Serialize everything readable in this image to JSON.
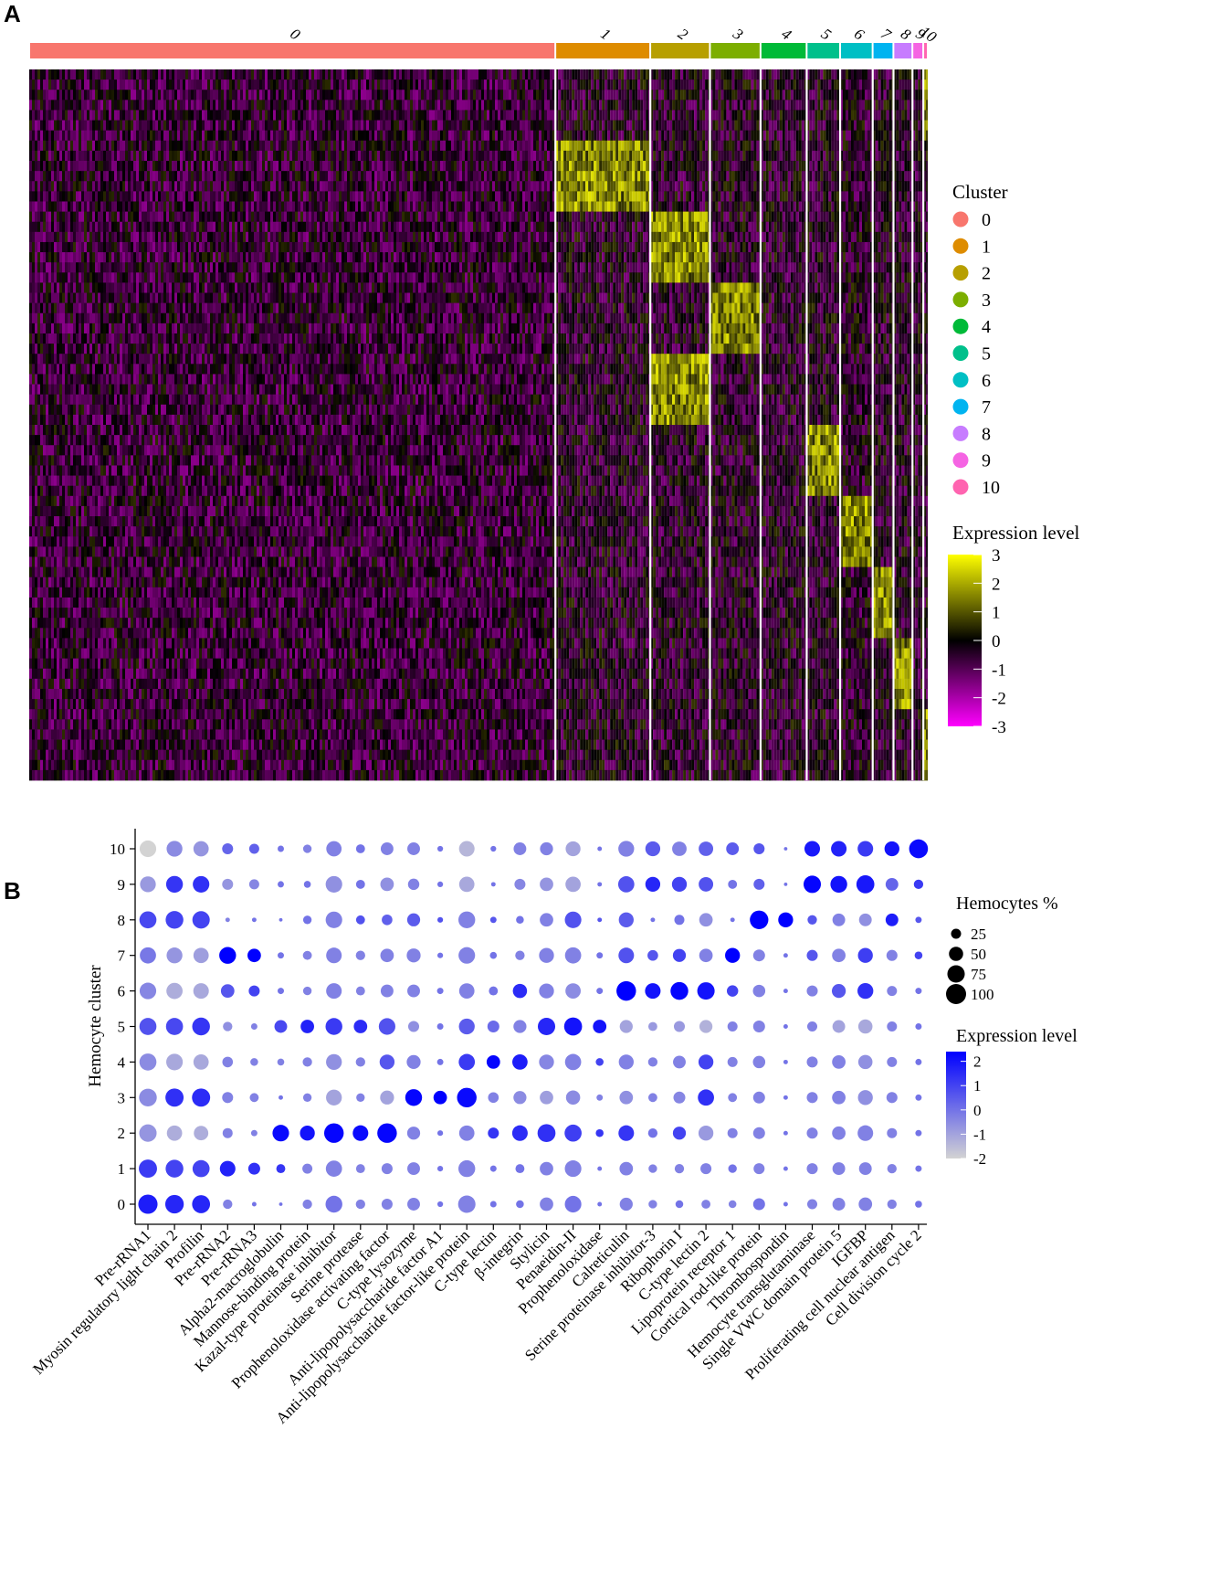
{
  "panels": {
    "a": {
      "letter": "A"
    },
    "b": {
      "letter": "B"
    }
  },
  "chart_data": [
    {
      "type": "heatmap",
      "panel": "A",
      "cluster_ids": [
        "0",
        "1",
        "2",
        "3",
        "4",
        "5",
        "6",
        "7",
        "8",
        "9",
        "10"
      ],
      "cluster_cell_fraction": [
        0.582,
        0.105,
        0.066,
        0.056,
        0.051,
        0.037,
        0.036,
        0.023,
        0.021,
        0.012,
        0.005
      ],
      "cluster_colors": [
        "#F8766D",
        "#DE8C00",
        "#B79F00",
        "#7CAE00",
        "#00BA38",
        "#00C08B",
        "#00BFC4",
        "#00B4F0",
        "#C77CFF",
        "#F564E3",
        "#FF64B0"
      ],
      "gene_blocks": {
        "note_free": "",
        "high_cluster_per_block": [
          10,
          1,
          2,
          3,
          2,
          5,
          6,
          7,
          8,
          10
        ]
      },
      "legend": {
        "cluster_title": "Cluster",
        "expression_title": "Expression level",
        "expression_ticks": [
          "3",
          "2",
          "1",
          "0",
          "-1",
          "-2",
          "-3"
        ],
        "expression_range": [
          -3,
          3
        ],
        "colors": {
          "low": "#FF00FF",
          "mid": "#000000",
          "high": "#FFFF00"
        }
      }
    },
    {
      "type": "scatter",
      "panel": "B",
      "subtype": "dot-plot",
      "ylabel": "Hemocyte cluster",
      "clusters": [
        "0",
        "1",
        "2",
        "3",
        "4",
        "5",
        "6",
        "7",
        "8",
        "9",
        "10"
      ],
      "genes": [
        "Pre-rRNA1",
        "Myosin regulatory light chain 2",
        "Profilin",
        "Pre-rRNA2",
        "Pre-rRNA3",
        "Alpha2-macroglobulin",
        "Mannose-binding protein",
        "Kazal-type proteinase inhibitor",
        "Serine protease",
        "Prophenoloxidase activating factor",
        "C-type lysozyme",
        "Anti-lipopolysaccharide factor A1",
        "Anti-lipopolysaccharide factor-like protein",
        "C-type lectin",
        "β-integrin",
        "Stylicin",
        "Penaeidin-II",
        "Prophenoloxidase",
        "Calreticulin",
        "Serine proteinase inhibitor-3",
        "Ribophorin I",
        "C-type lectin 2",
        "Lipoprotein receptor 1",
        "Cortical rod-like protein",
        "Thrombospondin",
        "Hemocyte transglutaminase",
        "Single VWC domain protein 5",
        "IGFBP",
        "Proliferating cell nuclear antigen",
        "Cell division cycle 2"
      ],
      "expression_rows": [
        [
          1.8,
          1.6,
          1.6,
          -0.3,
          0,
          0,
          -0.3,
          0,
          -0.3,
          -0.3,
          -0.3,
          0,
          -0.3,
          0,
          0,
          -0.3,
          0,
          0,
          -0.3,
          -0.3,
          0,
          -0.3,
          -0.3,
          0,
          0,
          -0.3,
          -0.3,
          -0.3,
          -0.3,
          0
        ],
        [
          1.2,
          1.0,
          1.0,
          1.7,
          1.4,
          1.3,
          -0.3,
          -0.3,
          -0.3,
          -0.3,
          -0.3,
          0,
          -0.3,
          0,
          0,
          -0.3,
          -0.3,
          0,
          -0.3,
          -0.3,
          -0.3,
          -0.3,
          0,
          -0.3,
          0,
          -0.3,
          -0.3,
          -0.3,
          -0.3,
          0
        ],
        [
          -0.7,
          -1.2,
          -1.2,
          -0.3,
          -0.3,
          2.2,
          2.0,
          2.3,
          2.2,
          2.3,
          -0.3,
          0,
          -0.3,
          1.3,
          1.5,
          1.4,
          1.1,
          1.3,
          1.3,
          0,
          1.0,
          -0.8,
          -0.3,
          -0.3,
          0,
          -0.3,
          -0.3,
          -0.3,
          -0.3,
          0
        ],
        [
          -0.5,
          1.4,
          1.5,
          -0.3,
          -0.3,
          0,
          -0.3,
          -1.0,
          -0.3,
          -1.0,
          2.3,
          2.4,
          2.2,
          -0.3,
          -0.5,
          -0.9,
          -0.5,
          -0.3,
          -0.6,
          -0.3,
          -0.4,
          1.4,
          -0.3,
          -0.3,
          0,
          -0.3,
          -0.3,
          -0.6,
          -0.3,
          0
        ],
        [
          -0.5,
          -1.1,
          -1.1,
          -0.3,
          -0.3,
          -0.3,
          -0.3,
          -0.6,
          -0.3,
          0.6,
          -0.3,
          0,
          1.2,
          2.3,
          1.8,
          -0.4,
          -0.3,
          1.0,
          -0.3,
          -0.3,
          -0.3,
          1.0,
          -0.3,
          -0.3,
          0,
          -0.3,
          -0.3,
          -0.6,
          -0.3,
          0
        ],
        [
          0.7,
          0.9,
          1.3,
          -0.6,
          -0.3,
          0.9,
          1.7,
          1.2,
          1.5,
          0.7,
          -0.6,
          0,
          0.5,
          0.2,
          -0.3,
          1.6,
          2.0,
          2.0,
          -1.0,
          -0.8,
          -0.8,
          -1.3,
          -0.3,
          -0.3,
          0,
          -0.3,
          -1.0,
          -1.1,
          -0.3,
          0
        ],
        [
          -0.4,
          -1.2,
          -1.1,
          0.6,
          1.0,
          0,
          -0.3,
          -0.3,
          -0.3,
          -0.3,
          -0.3,
          0,
          -0.3,
          0,
          1.5,
          -0.3,
          -0.5,
          0,
          2.6,
          2.0,
          2.3,
          2.0,
          1.0,
          -0.3,
          0,
          -0.3,
          0.6,
          1.4,
          -0.3,
          0
        ],
        [
          -0.1,
          -0.7,
          -0.9,
          2.5,
          2.5,
          0,
          -0.3,
          -0.3,
          -0.3,
          -0.3,
          -0.3,
          0,
          -0.3,
          0,
          -0.3,
          -0.3,
          -0.3,
          0,
          0.7,
          0.6,
          1.0,
          -0.3,
          2.5,
          -0.3,
          0,
          0.6,
          -0.3,
          1.1,
          -0.3,
          1.0
        ],
        [
          0.9,
          1.0,
          1.0,
          -0.3,
          0,
          0,
          0,
          -0.3,
          0.7,
          0.4,
          0.5,
          0.7,
          -0.3,
          0.6,
          0,
          -0.3,
          0.7,
          0.6,
          0.5,
          0,
          0,
          -0.6,
          0,
          2.5,
          2.5,
          0.6,
          -0.3,
          -0.6,
          1.8,
          0.6
        ],
        [
          -0.8,
          1.3,
          1.4,
          -0.7,
          -0.4,
          0,
          0,
          -0.6,
          0,
          -0.6,
          -0.3,
          0,
          -1.1,
          0,
          -0.4,
          -0.7,
          -1.0,
          0,
          0.7,
          1.6,
          1.0,
          0.7,
          0,
          0.4,
          0,
          2.3,
          2.0,
          1.9,
          0.3,
          1.2
        ],
        [
          -2.0,
          -0.5,
          -0.7,
          0.3,
          0.4,
          0,
          -0.3,
          -0.3,
          0,
          -0.3,
          -0.3,
          0,
          -1.4,
          0,
          -0.3,
          -0.3,
          -1.0,
          0,
          -0.3,
          0.5,
          -0.3,
          0.4,
          0.5,
          0.6,
          0,
          1.9,
          1.7,
          1.2,
          2.0,
          2.2
        ]
      ],
      "percent_rows": [
        [
          92,
          85,
          80,
          22,
          5,
          3,
          22,
          70,
          22,
          30,
          40,
          8,
          75,
          10,
          15,
          45,
          68,
          5,
          42,
          18,
          15,
          20,
          15,
          35,
          5,
          25,
          40,
          45,
          22,
          12
        ],
        [
          82,
          78,
          72,
          60,
          35,
          20,
          25,
          65,
          20,
          30,
          40,
          8,
          70,
          10,
          20,
          45,
          68,
          5,
          45,
          18,
          22,
          30,
          18,
          30,
          5,
          30,
          40,
          40,
          22,
          10
        ],
        [
          75,
          58,
          52,
          25,
          10,
          68,
          55,
          95,
          60,
          95,
          42,
          8,
          58,
          30,
          60,
          80,
          72,
          15,
          60,
          22,
          42,
          55,
          25,
          35,
          5,
          30,
          45,
          60,
          25,
          10
        ],
        [
          78,
          82,
          82,
          30,
          20,
          5,
          18,
          62,
          18,
          48,
          70,
          45,
          95,
          28,
          42,
          45,
          50,
          10,
          45,
          20,
          35,
          65,
          20,
          35,
          5,
          30,
          45,
          55,
          30,
          10
        ],
        [
          72,
          68,
          58,
          28,
          15,
          12,
          22,
          62,
          22,
          55,
          48,
          10,
          65,
          45,
          58,
          55,
          65,
          15,
          55,
          22,
          40,
          55,
          25,
          38,
          5,
          30,
          45,
          50,
          25,
          10
        ],
        [
          72,
          72,
          78,
          22,
          10,
          40,
          45,
          70,
          45,
          68,
          30,
          10,
          62,
          35,
          42,
          75,
          80,
          45,
          42,
          20,
          30,
          42,
          25,
          35,
          5,
          25,
          40,
          50,
          25,
          10
        ],
        [
          68,
          65,
          60,
          45,
          30,
          10,
          18,
          60,
          20,
          40,
          40,
          10,
          58,
          20,
          50,
          55,
          58,
          10,
          95,
          60,
          78,
          75,
          32,
          38,
          5,
          30,
          48,
          62,
          25,
          10
        ],
        [
          65,
          62,
          58,
          70,
          45,
          10,
          20,
          60,
          22,
          45,
          48,
          8,
          68,
          12,
          22,
          55,
          65,
          10,
          60,
          28,
          42,
          45,
          55,
          35,
          5,
          30,
          45,
          55,
          30,
          15
        ],
        [
          72,
          78,
          75,
          5,
          5,
          3,
          18,
          68,
          20,
          28,
          42,
          8,
          70,
          10,
          15,
          45,
          68,
          5,
          55,
          5,
          25,
          45,
          5,
          85,
          55,
          22,
          40,
          40,
          40,
          10
        ],
        [
          62,
          70,
          68,
          30,
          25,
          10,
          12,
          68,
          20,
          45,
          32,
          8,
          58,
          5,
          30,
          45,
          58,
          5,
          65,
          55,
          55,
          52,
          20,
          30,
          3,
          75,
          70,
          80,
          40,
          22
        ],
        [
          68,
          62,
          58,
          30,
          25,
          10,
          18,
          58,
          20,
          40,
          40,
          8,
          60,
          8,
          40,
          42,
          55,
          5,
          62,
          55,
          52,
          52,
          40,
          30,
          3,
          60,
          60,
          60,
          55,
          88
        ]
      ],
      "legend": {
        "size_title": "Hemocytes %",
        "size_ticks": [
          25,
          50,
          75,
          100
        ],
        "size_labels": [
          "25",
          "50",
          "75",
          "100"
        ],
        "color_title": "Expression level",
        "color_ticks": [
          "2",
          "1",
          "0",
          "-1",
          "-2"
        ],
        "color_range": [
          -2,
          2.4
        ],
        "colors": {
          "low": "#D3D3D3",
          "high": "#0000FF"
        }
      }
    }
  ]
}
